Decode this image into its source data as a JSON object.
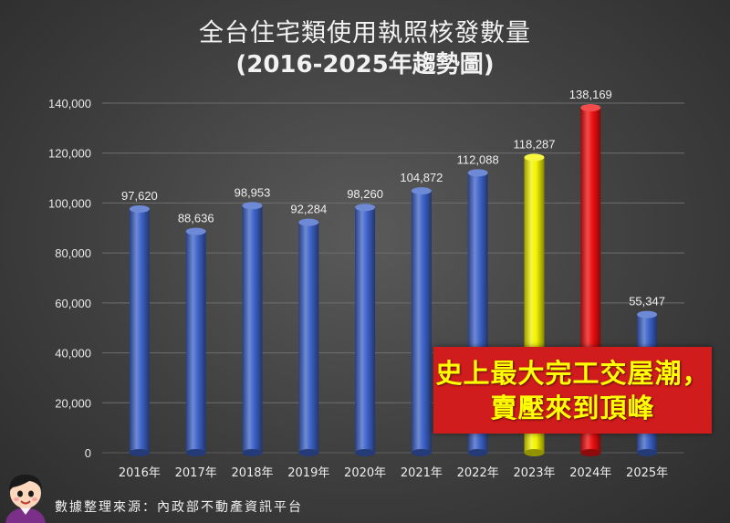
{
  "title_line1": "全台住宅類使用執照核發數量",
  "title_line2": "(2016-2025年趨勢圖)",
  "callout": {
    "line1": "史上最大完工交屋潮，",
    "line2": "賣壓來到頂峰"
  },
  "source": "數據整理來源：內政部不動產資訊平台",
  "colors": {
    "bar": "#3d63c8",
    "highlight_yellow": "#f3f300",
    "highlight_red": "#ee1010",
    "callout_bg": "#d01c1c",
    "callout_text": "#ffff00"
  },
  "chart_data": {
    "type": "bar",
    "categories": [
      "2016年",
      "2017年",
      "2018年",
      "2019年",
      "2020年",
      "2021年",
      "2022年",
      "2023年",
      "2024年",
      "2025年"
    ],
    "values": [
      97620,
      88636,
      98953,
      92284,
      98260,
      104872,
      112088,
      118287,
      138169,
      55347
    ],
    "value_labels": [
      "97,620",
      "88,636",
      "98,953",
      "92,284",
      "98,260",
      "104,872",
      "112,088",
      "118,287",
      "138,169",
      "55,347"
    ],
    "bar_colors": [
      "#3d63c8",
      "#3d63c8",
      "#3d63c8",
      "#3d63c8",
      "#3d63c8",
      "#3d63c8",
      "#3d63c8",
      "#f3f300",
      "#ee1010",
      "#3d63c8"
    ],
    "ylim": [
      0,
      140000
    ],
    "yticks": [
      0,
      20000,
      40000,
      60000,
      80000,
      100000,
      120000,
      140000
    ],
    "ytick_labels": [
      "0",
      "20,000",
      "40,000",
      "60,000",
      "80,000",
      "100,000",
      "120,000",
      "140,000"
    ],
    "grid": true,
    "legend": "none"
  }
}
